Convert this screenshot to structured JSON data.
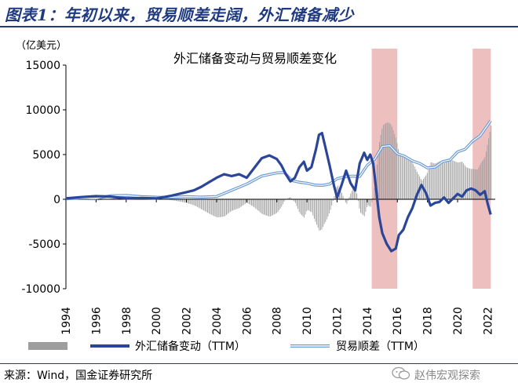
{
  "figure_title": "图表1：年初以来，贸易顺差走阔，外汇储备减少",
  "source_text": "来源：Wind，国金证券研究所",
  "watermark_text": "赵伟宏观探索",
  "chart_data": {
    "type": "line",
    "title": "外汇储备变动与贸易顺差变化",
    "y_unit": "（亿美元）",
    "ylim": [
      -10000,
      15000
    ],
    "yticks": [
      "15000",
      "10000",
      "5000",
      "0",
      "-5000",
      "-10000"
    ],
    "ytick_values": [
      15000,
      10000,
      5000,
      0,
      -5000,
      -10000
    ],
    "xlim": [
      1994,
      2022.5
    ],
    "xticks": [
      "1994",
      "1996",
      "1998",
      "2000",
      "2002",
      "2004",
      "2006",
      "2008",
      "2010",
      "2012",
      "2014",
      "2016",
      "2018",
      "2020",
      "2022"
    ],
    "xtick_values": [
      1994,
      1996,
      1998,
      2000,
      2002,
      2004,
      2006,
      2008,
      2010,
      2012,
      2014,
      2016,
      2018,
      2020,
      2022
    ],
    "shaded_periods": [
      [
        2014.3,
        2016.0
      ],
      [
        2021.0,
        2022.2
      ]
    ],
    "colors": {
      "reserve": "#2b4597",
      "trade": "#6b9bd8",
      "bars": "#9e9e9e",
      "shade": "#e8a9a9",
      "title": "#1f3a80"
    },
    "legend": {
      "bar_label": "",
      "reserve_label": "外汇储备变动（TTM）",
      "trade_label": "贸易顺差（TTM）"
    },
    "series": [
      {
        "name": "外汇储备变动（TTM）",
        "style": "thick-line",
        "x": [
          1994,
          1995,
          1996,
          1997,
          1998,
          1999,
          2000,
          2001,
          2002,
          2002.5,
          2003,
          2003.5,
          2004,
          2004.5,
          2005,
          2005.5,
          2006,
          2006.5,
          2007,
          2007.5,
          2008,
          2008.3,
          2008.6,
          2008.9,
          2009.2,
          2009.5,
          2009.8,
          2010,
          2010.3,
          2010.6,
          2010.8,
          2011,
          2011.2,
          2011.5,
          2011.8,
          2012,
          2012.3,
          2012.6,
          2012.9,
          2013.2,
          2013.5,
          2013.8,
          2014,
          2014.2,
          2014.4,
          2014.6,
          2014.8,
          2015,
          2015.3,
          2015.6,
          2015.9,
          2016.1,
          2016.4,
          2016.7,
          2017,
          2017.3,
          2017.6,
          2017.9,
          2018.2,
          2018.5,
          2018.8,
          2019.1,
          2019.4,
          2019.7,
          2020,
          2020.3,
          2020.6,
          2020.9,
          2021.2,
          2021.5,
          2021.8,
          2022,
          2022.2
        ],
        "y": [
          100,
          250,
          350,
          300,
          100,
          150,
          100,
          400,
          800,
          1000,
          1400,
          1900,
          2400,
          2800,
          2600,
          2800,
          2400,
          3500,
          4600,
          4900,
          4500,
          3800,
          2800,
          2000,
          2400,
          3600,
          4200,
          3200,
          3600,
          5600,
          7200,
          7400,
          6000,
          3800,
          1500,
          200,
          1600,
          3200,
          1800,
          1000,
          4000,
          5200,
          4400,
          5000,
          4000,
          1000,
          -2000,
          -3800,
          -5000,
          -5800,
          -5500,
          -4000,
          -3400,
          -2000,
          -1000,
          500,
          1600,
          700,
          -700,
          -400,
          -300,
          200,
          -400,
          100,
          600,
          300,
          1000,
          1200,
          1000,
          500,
          900,
          -500,
          -1700
        ]
      },
      {
        "name": "贸易顺差（TTM）",
        "style": "double-line",
        "x": [
          1994,
          1995,
          1996,
          1997,
          1998,
          1999,
          2000,
          2001,
          2002,
          2003,
          2004,
          2005,
          2006,
          2007,
          2008,
          2008.5,
          2009,
          2009.5,
          2010,
          2010.5,
          2011,
          2011.5,
          2012,
          2012.5,
          2013,
          2013.5,
          2014,
          2014.5,
          2015,
          2015.5,
          2016,
          2016.5,
          2017,
          2017.5,
          2018,
          2018.5,
          2019,
          2019.5,
          2020,
          2020.5,
          2021,
          2021.5,
          2022,
          2022.2
        ],
        "y": [
          50,
          150,
          120,
          400,
          430,
          300,
          240,
          230,
          300,
          250,
          320,
          1000,
          1700,
          2600,
          2950,
          3000,
          2100,
          1900,
          1800,
          1600,
          1550,
          1700,
          2300,
          2500,
          2600,
          2550,
          3800,
          4500,
          5900,
          6000,
          5100,
          4800,
          4300,
          4000,
          3500,
          3600,
          4200,
          4400,
          5300,
          5600,
          6500,
          7100,
          8300,
          8800
        ]
      }
    ]
  }
}
